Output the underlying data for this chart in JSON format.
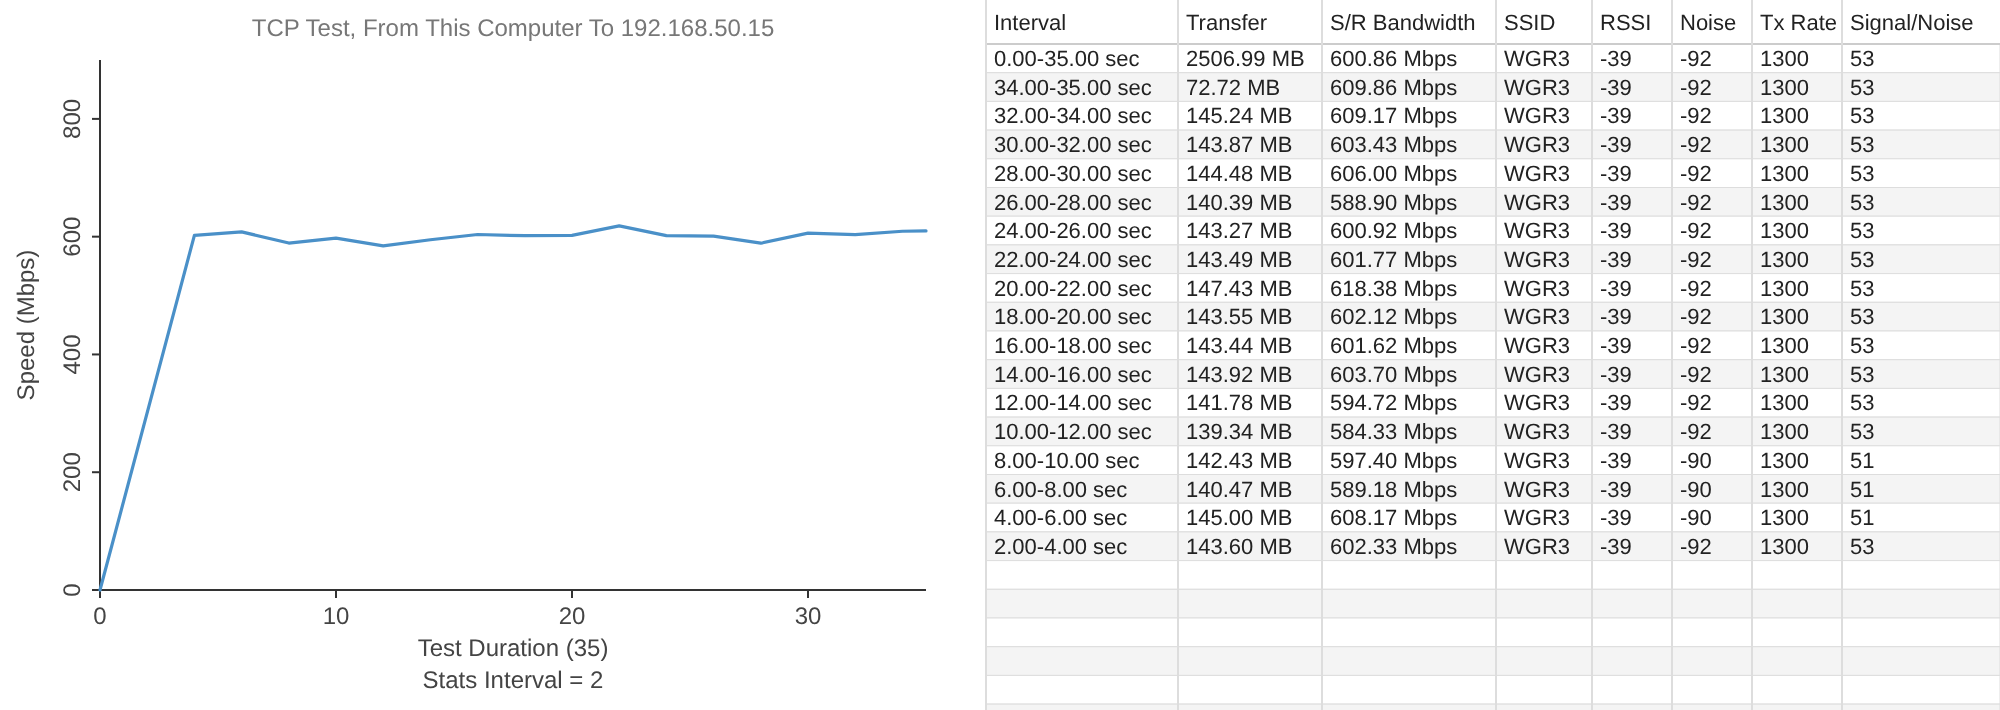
{
  "chart_data": [
    {
      "type": "line",
      "title": "TCP Test,  From This Computer To 192.168.50.15",
      "xlabel": "Test Duration (35)",
      "ylabel": "Speed (Mbps)",
      "annotations": [
        "Stats Interval = 2"
      ],
      "x": [
        0,
        4,
        6,
        8,
        10,
        12,
        14,
        16,
        18,
        20,
        22,
        24,
        26,
        28,
        30,
        32,
        34,
        35
      ],
      "series": [
        {
          "color": "#4a90c8",
          "values": [
            0,
            602.33,
            608.17,
            589.18,
            597.4,
            584.33,
            594.72,
            603.7,
            601.62,
            602.12,
            618.38,
            601.77,
            600.92,
            588.9,
            606.0,
            603.43,
            609.17,
            609.86
          ]
        }
      ],
      "xlim": [
        0,
        35
      ],
      "ylim": [
        0,
        900
      ],
      "xticks": [
        0,
        10,
        20,
        30
      ],
      "yticks": [
        0,
        200,
        400,
        600,
        800
      ]
    },
    {
      "type": "other",
      "categories": [
        "Interval",
        "Transfer",
        "S/R Bandwidth",
        "SSID",
        "RSSI",
        "Noise",
        "Tx Rate",
        "Signal/Noise"
      ],
      "cell_labels": [
        [
          "0.00-35.00 sec",
          "2506.99 MB",
          "600.86 Mbps",
          "WGR3",
          "-39",
          "-92",
          "1300",
          "53"
        ],
        [
          "34.00-35.00 sec",
          "72.72 MB",
          "609.86 Mbps",
          "WGR3",
          "-39",
          "-92",
          "1300",
          "53"
        ],
        [
          "32.00-34.00 sec",
          "145.24 MB",
          "609.17 Mbps",
          "WGR3",
          "-39",
          "-92",
          "1300",
          "53"
        ],
        [
          "30.00-32.00 sec",
          "143.87 MB",
          "603.43 Mbps",
          "WGR3",
          "-39",
          "-92",
          "1300",
          "53"
        ],
        [
          "28.00-30.00 sec",
          "144.48 MB",
          "606.00 Mbps",
          "WGR3",
          "-39",
          "-92",
          "1300",
          "53"
        ],
        [
          "26.00-28.00 sec",
          "140.39 MB",
          "588.90 Mbps",
          "WGR3",
          "-39",
          "-92",
          "1300",
          "53"
        ],
        [
          "24.00-26.00 sec",
          "143.27 MB",
          "600.92 Mbps",
          "WGR3",
          "-39",
          "-92",
          "1300",
          "53"
        ],
        [
          "22.00-24.00 sec",
          "143.49 MB",
          "601.77 Mbps",
          "WGR3",
          "-39",
          "-92",
          "1300",
          "53"
        ],
        [
          "20.00-22.00 sec",
          "147.43 MB",
          "618.38 Mbps",
          "WGR3",
          "-39",
          "-92",
          "1300",
          "53"
        ],
        [
          "18.00-20.00 sec",
          "143.55 MB",
          "602.12 Mbps",
          "WGR3",
          "-39",
          "-92",
          "1300",
          "53"
        ],
        [
          "16.00-18.00 sec",
          "143.44 MB",
          "601.62 Mbps",
          "WGR3",
          "-39",
          "-92",
          "1300",
          "53"
        ],
        [
          "14.00-16.00 sec",
          "143.92 MB",
          "603.70 Mbps",
          "WGR3",
          "-39",
          "-92",
          "1300",
          "53"
        ],
        [
          "12.00-14.00 sec",
          "141.78 MB",
          "594.72 Mbps",
          "WGR3",
          "-39",
          "-92",
          "1300",
          "53"
        ],
        [
          "10.00-12.00 sec",
          "139.34 MB",
          "584.33 Mbps",
          "WGR3",
          "-39",
          "-92",
          "1300",
          "53"
        ],
        [
          "8.00-10.00 sec",
          "142.43 MB",
          "597.40 Mbps",
          "WGR3",
          "-39",
          "-90",
          "1300",
          "51"
        ],
        [
          "6.00-8.00 sec",
          "140.47 MB",
          "589.18 Mbps",
          "WGR3",
          "-39",
          "-90",
          "1300",
          "51"
        ],
        [
          "4.00-6.00 sec",
          "145.00 MB",
          "608.17 Mbps",
          "WGR3",
          "-39",
          "-90",
          "1300",
          "51"
        ],
        [
          "2.00-4.00 sec",
          "143.60 MB",
          "602.33 Mbps",
          "WGR3",
          "-39",
          "-92",
          "1300",
          "53"
        ]
      ]
    }
  ]
}
